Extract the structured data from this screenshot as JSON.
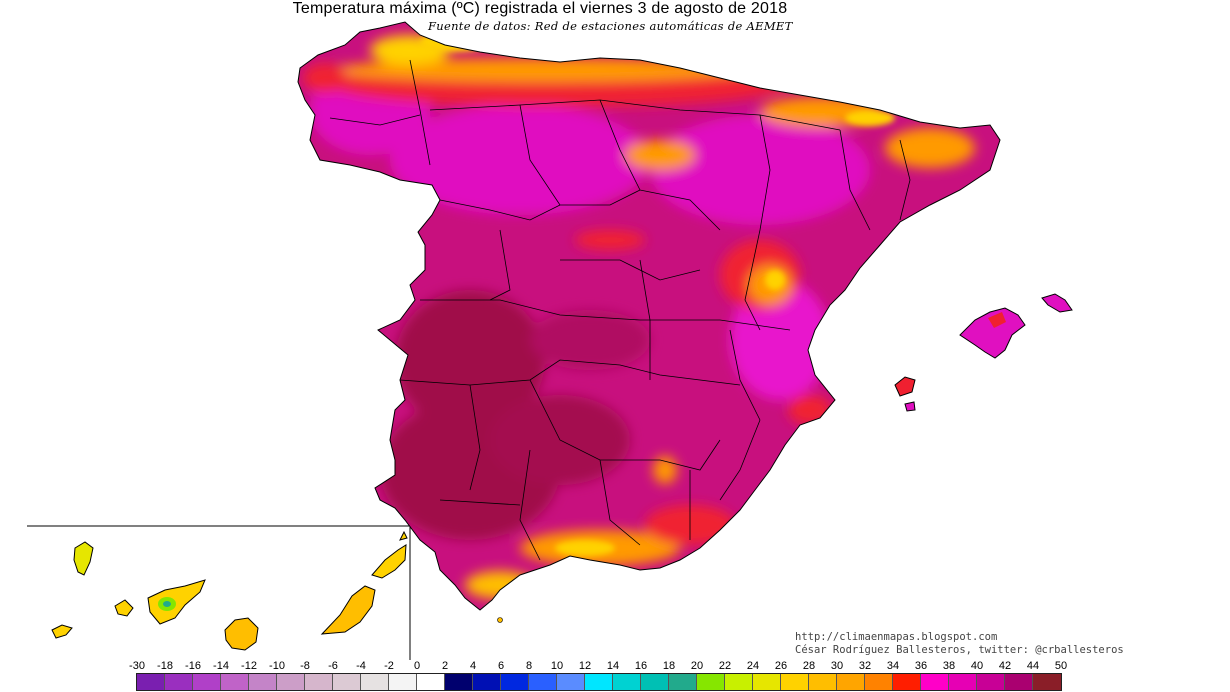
{
  "title": "Temperatura máxima (ºC) registrada el viernes 3 de agosto de 2018",
  "subtitle": "Fuente de datos: Red de estaciones automáticas de AEMET",
  "credits": {
    "line1": "http://climaenmapas.blogspot.com",
    "line2": "César Rodríguez Ballesteros, twitter: @crballesteros"
  },
  "legend": {
    "labels": [
      "-30",
      "-18",
      "-16",
      "-14",
      "-12",
      "-10",
      "-8",
      "-6",
      "-4",
      "-2",
      "0",
      "2",
      "4",
      "6",
      "8",
      "10",
      "12",
      "14",
      "16",
      "18",
      "20",
      "22",
      "24",
      "26",
      "28",
      "30",
      "32",
      "34",
      "36",
      "38",
      "40",
      "42",
      "44",
      "50"
    ],
    "colors": [
      "#7a1fb0",
      "#9a2fbf",
      "#b040c8",
      "#c063c8",
      "#c484c8",
      "#cc9ec8",
      "#d6b6cc",
      "#dccad4",
      "#e6e2e2",
      "#f4f4f4",
      "#ffffff",
      "#00006e",
      "#0010b4",
      "#0028e0",
      "#2a60ff",
      "#5a8cff",
      "#00e6ff",
      "#00d2d2",
      "#00c0b4",
      "#22aa8c",
      "#86e600",
      "#c8f000",
      "#e6e600",
      "#ffd200",
      "#ffbe00",
      "#ffa500",
      "#ff8200",
      "#ff1e00",
      "#ff00c8",
      "#e600b4",
      "#c80096",
      "#aa0070",
      "#8a1e28"
    ]
  },
  "map_colors": {
    "hot_deep": "#a0104a",
    "hot_main": "#c8107e",
    "hot_pink": "#e010c0",
    "magenta": "#f020d0",
    "red": "#f02030",
    "orange": "#ff9a00",
    "yellow": "#ffd200",
    "green": "#3cc060"
  }
}
